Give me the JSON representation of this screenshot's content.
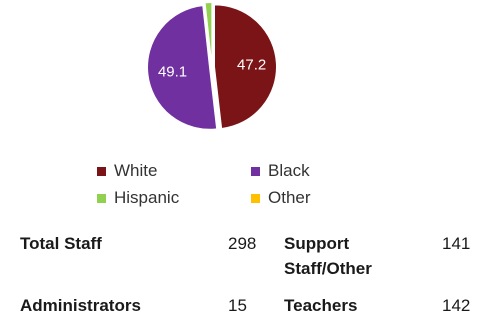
{
  "chart_data": {
    "type": "pie",
    "categories": [
      "White",
      "Black",
      "Hispanic",
      "Other"
    ],
    "values": [
      47.2,
      49.1,
      1.7,
      0.0
    ],
    "colors": [
      "#7b1417",
      "#7030a0",
      "#92d050",
      "#ffc000"
    ],
    "data_labels": [
      "47.2",
      "49.1",
      "",
      ""
    ],
    "title": "",
    "legend_position": "bottom"
  },
  "stats": {
    "total_staff": {
      "label": "Total Staff",
      "value": "298"
    },
    "administrators": {
      "label": "Administrators",
      "value": "15"
    },
    "support_staff": {
      "label_line1": "Support",
      "label_line2": "Staff/Other",
      "value": "141"
    },
    "teachers": {
      "label": "Teachers",
      "value": "142"
    }
  }
}
